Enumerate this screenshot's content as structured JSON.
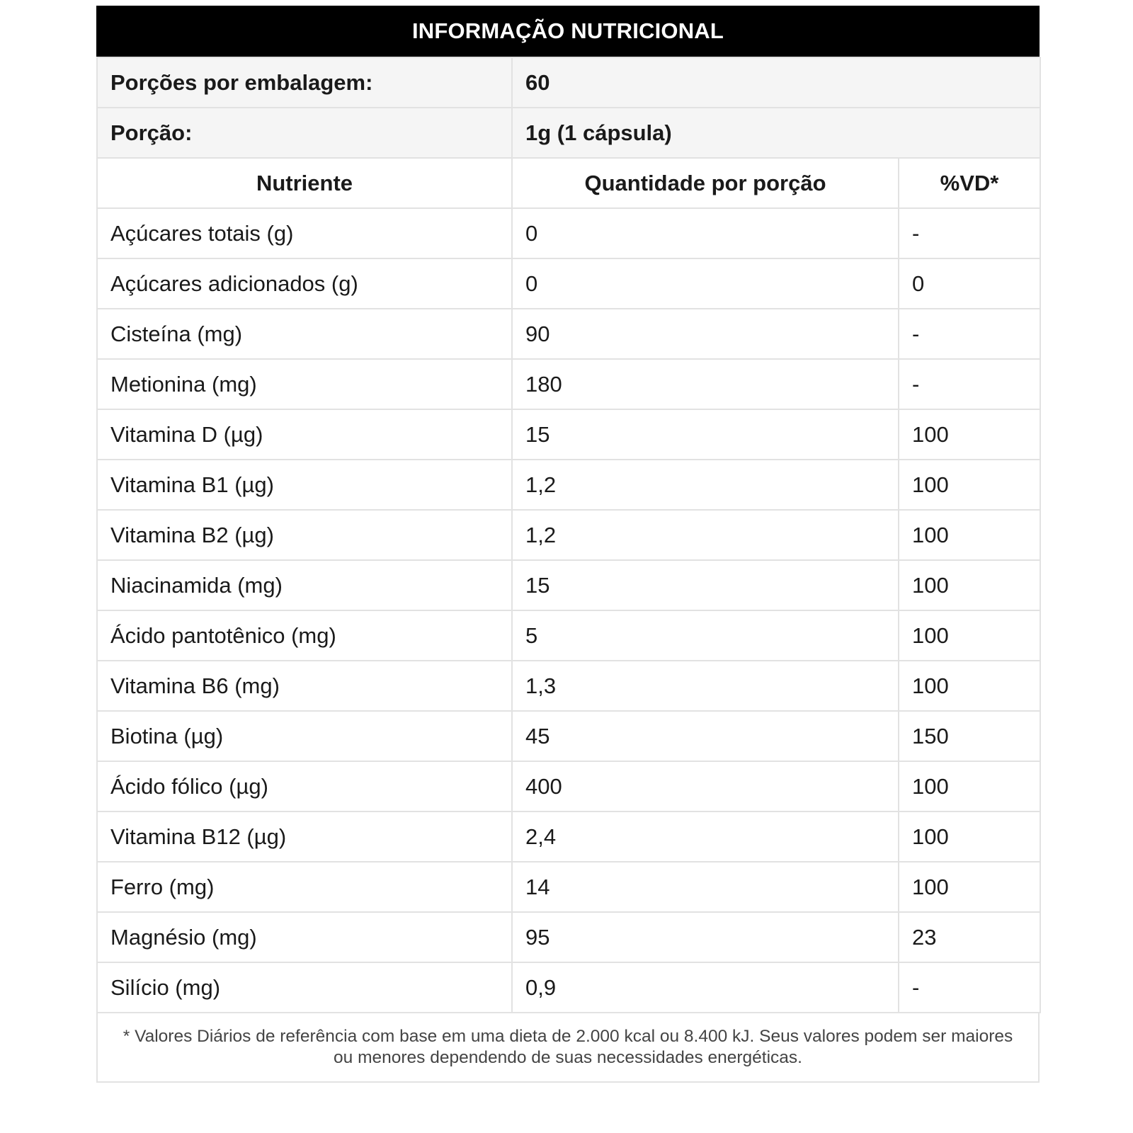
{
  "title": "INFORMAÇÃO NUTRICIONAL",
  "servings_per_package": {
    "label": "Porções por embalagem:",
    "value": "60"
  },
  "serving_size": {
    "label": "Porção:",
    "value": "1g (1 cápsula)"
  },
  "columns": [
    "Nutriente",
    "Quantidade por porção",
    "%VD*"
  ],
  "rows": [
    {
      "nutrient": "Açúcares totais (g)",
      "amount": "0",
      "dv": "-"
    },
    {
      "nutrient": "Açúcares adicionados (g)",
      "amount": "0",
      "dv": "0"
    },
    {
      "nutrient": "Cisteína (mg)",
      "amount": "90",
      "dv": "-"
    },
    {
      "nutrient": "Metionina (mg)",
      "amount": "180",
      "dv": "-"
    },
    {
      "nutrient": "Vitamina D (µg)",
      "amount": "15",
      "dv": "100"
    },
    {
      "nutrient": "Vitamina B1 (µg)",
      "amount": "1,2",
      "dv": "100"
    },
    {
      "nutrient": "Vitamina B2 (µg)",
      "amount": "1,2",
      "dv": "100"
    },
    {
      "nutrient": "Niacinamida (mg)",
      "amount": "15",
      "dv": "100"
    },
    {
      "nutrient": "Ácido pantotênico (mg)",
      "amount": "5",
      "dv": "100"
    },
    {
      "nutrient": "Vitamina B6 (mg)",
      "amount": "1,3",
      "dv": "100"
    },
    {
      "nutrient": "Biotina (µg)",
      "amount": "45",
      "dv": "150"
    },
    {
      "nutrient": "Ácido fólico (µg)",
      "amount": "400",
      "dv": "100"
    },
    {
      "nutrient": "Vitamina B12 (µg)",
      "amount": "2,4",
      "dv": "100"
    },
    {
      "nutrient": "Ferro (mg)",
      "amount": "14",
      "dv": "100"
    },
    {
      "nutrient": "Magnésio (mg)",
      "amount": "95",
      "dv": "23"
    },
    {
      "nutrient": "Silício (mg)",
      "amount": "0,9",
      "dv": "-"
    }
  ],
  "footnote": "* Valores Diários de referência com base em uma dieta de 2.000 kcal ou 8.400 kJ. Seus valores podem ser maiores ou menores dependendo de suas necessidades energéticas."
}
